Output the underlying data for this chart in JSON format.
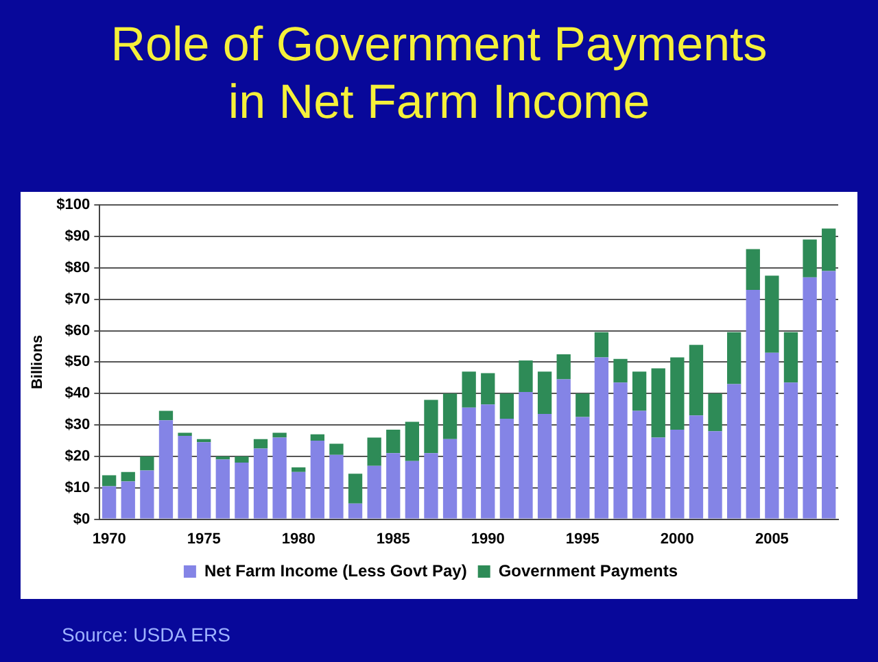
{
  "chart_data": {
    "type": "bar",
    "title": "Role of Government Payments in Net Farm Income",
    "ylabel": "Billions",
    "stacked": true,
    "categories": [
      "1970",
      null,
      null,
      null,
      null,
      "1975",
      null,
      null,
      null,
      null,
      "1980",
      null,
      null,
      null,
      null,
      "1985",
      null,
      null,
      null,
      null,
      "1990",
      null,
      null,
      null,
      null,
      "1995",
      null,
      null,
      null,
      null,
      "2000",
      null,
      null,
      null,
      null,
      "2005",
      null,
      null,
      null
    ],
    "series": [
      {
        "name": "Net Farm Income (Less Govt Pay)",
        "color": "#8484e6",
        "values": [
          10.5,
          12,
          15.5,
          31.5,
          26.5,
          24.5,
          19,
          18,
          22.5,
          26,
          15,
          25,
          20.5,
          5,
          17,
          21,
          18.5,
          21,
          25.5,
          35.5,
          36.5,
          32,
          40.5,
          33.5,
          44.5,
          32.5,
          51.5,
          43.5,
          34.5,
          26,
          28.5,
          33,
          28,
          43,
          73,
          53,
          43.5,
          77,
          79
        ]
      },
      {
        "name": "Government Payments",
        "color": "#2e8b57",
        "values": [
          3.5,
          3,
          4.5,
          3,
          1,
          1,
          1,
          2,
          3,
          1.5,
          1.5,
          2,
          3.5,
          9.5,
          9,
          7.5,
          12.5,
          17,
          14.5,
          11.5,
          10,
          8,
          10,
          13.5,
          8,
          7.5,
          8,
          7.5,
          12.5,
          22,
          23,
          22.5,
          12,
          16.5,
          13,
          24.5,
          16,
          12,
          13.5
        ]
      }
    ],
    "ylim": [
      0,
      100
    ],
    "yticks": [
      {
        "value": 0,
        "label": "$0"
      },
      {
        "value": 10,
        "label": "$10"
      },
      {
        "value": 20,
        "label": "$20"
      },
      {
        "value": 30,
        "label": "$30"
      },
      {
        "value": 40,
        "label": "$40"
      },
      {
        "value": 50,
        "label": "$50"
      },
      {
        "value": 60,
        "label": "$60"
      },
      {
        "value": 70,
        "label": "$70"
      },
      {
        "value": 80,
        "label": "$80"
      },
      {
        "value": 90,
        "label": "$90"
      },
      {
        "value": 100,
        "label": "$100"
      }
    ],
    "grid": "y",
    "legend": "bottom",
    "annotations": [
      "Source: USDA ERS"
    ]
  }
}
